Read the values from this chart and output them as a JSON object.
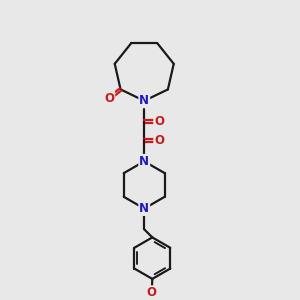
{
  "bg_color": "#e8e8e8",
  "bond_color": "#1a1a1a",
  "N_color": "#1a1acc",
  "O_color": "#cc1a1a",
  "line_width": 1.6,
  "font_size_atom": 8.5,
  "fig_size": [
    3.0,
    3.0
  ],
  "dpi": 100,
  "xlim": [
    0,
    10
  ],
  "ylim": [
    0,
    10
  ]
}
